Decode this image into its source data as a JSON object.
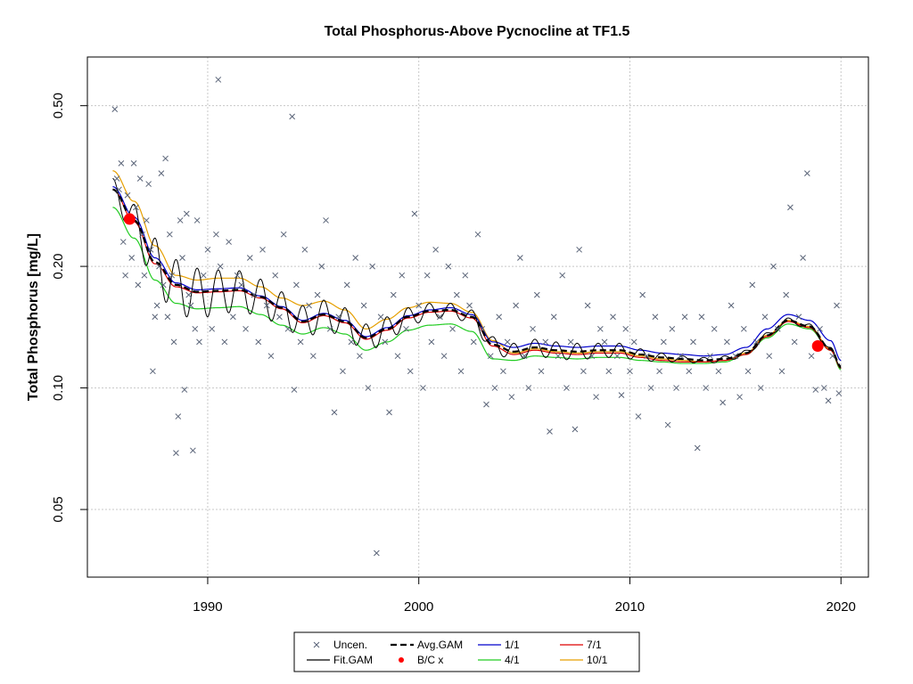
{
  "chart_data": {
    "type": "scatter",
    "title": "Total Phosphorus-Above Pycnocline at TF1.5",
    "xlabel": "",
    "ylabel": "Total Phosphorus [mg/L]",
    "xlim": [
      1984.3,
      2021.3
    ],
    "ylim": [
      0.034,
      0.66
    ],
    "y_scale": "log",
    "x_ticks": [
      1990,
      2000,
      2010,
      2020
    ],
    "x_tick_labels": [
      "1990",
      "2000",
      "2010",
      "2020"
    ],
    "y_ticks": [
      0.05,
      0.1,
      0.2,
      0.5
    ],
    "y_tick_labels": [
      "0.05",
      "0.10",
      "0.20",
      "0.50"
    ],
    "grid": true,
    "legend_position": "bottom-center",
    "legend": [
      {
        "label": "Uncen.",
        "symbol": "x",
        "color": "#5a6478"
      },
      {
        "label": "Fit.GAM",
        "symbol": "line",
        "color": "#000000"
      },
      {
        "label": "Avg.GAM",
        "symbol": "dash",
        "color": "#000000"
      },
      {
        "label": "B/C x",
        "symbol": "dot",
        "color": "#ff0000"
      },
      {
        "label": "1/1",
        "symbol": "line",
        "color": "#0000cc"
      },
      {
        "label": "4/1",
        "symbol": "line",
        "color": "#22cc22"
      },
      {
        "label": "7/1",
        "symbol": "line",
        "color": "#dd0000"
      },
      {
        "label": "10/1",
        "symbol": "line",
        "color": "#e69f00"
      }
    ],
    "observations": [
      [
        1985.6,
        0.49
      ],
      [
        1985.7,
        0.33
      ],
      [
        1985.8,
        0.31
      ],
      [
        1985.9,
        0.36
      ],
      [
        1986.0,
        0.23
      ],
      [
        1986.1,
        0.19
      ],
      [
        1986.2,
        0.3
      ],
      [
        1986.3,
        0.26
      ],
      [
        1986.4,
        0.21
      ],
      [
        1986.5,
        0.36
      ],
      [
        1986.6,
        0.28
      ],
      [
        1986.7,
        0.18
      ],
      [
        1986.8,
        0.33
      ],
      [
        1986.9,
        0.24
      ],
      [
        1987.0,
        0.19
      ],
      [
        1987.1,
        0.26
      ],
      [
        1987.2,
        0.32
      ],
      [
        1987.3,
        0.22
      ],
      [
        1987.4,
        0.11
      ],
      [
        1987.5,
        0.15
      ],
      [
        1987.6,
        0.16
      ],
      [
        1987.7,
        0.2
      ],
      [
        1987.8,
        0.34
      ],
      [
        1987.9,
        0.18
      ],
      [
        1988.0,
        0.37
      ],
      [
        1988.1,
        0.15
      ],
      [
        1988.2,
        0.24
      ],
      [
        1988.3,
        0.19
      ],
      [
        1988.4,
        0.13
      ],
      [
        1988.5,
        0.069
      ],
      [
        1988.6,
        0.085
      ],
      [
        1988.7,
        0.26
      ],
      [
        1988.8,
        0.21
      ],
      [
        1988.9,
        0.099
      ],
      [
        1989.0,
        0.27
      ],
      [
        1989.1,
        0.17
      ],
      [
        1989.2,
        0.16
      ],
      [
        1989.3,
        0.07
      ],
      [
        1989.4,
        0.14
      ],
      [
        1989.5,
        0.26
      ],
      [
        1989.6,
        0.13
      ],
      [
        1989.8,
        0.19
      ],
      [
        1990.0,
        0.22
      ],
      [
        1990.2,
        0.14
      ],
      [
        1990.4,
        0.24
      ],
      [
        1990.5,
        0.58
      ],
      [
        1990.6,
        0.2
      ],
      [
        1990.8,
        0.13
      ],
      [
        1991.0,
        0.23
      ],
      [
        1991.2,
        0.15
      ],
      [
        1991.4,
        0.19
      ],
      [
        1991.6,
        0.18
      ],
      [
        1991.8,
        0.14
      ],
      [
        1992.0,
        0.21
      ],
      [
        1992.2,
        0.17
      ],
      [
        1992.4,
        0.13
      ],
      [
        1992.6,
        0.22
      ],
      [
        1992.8,
        0.16
      ],
      [
        1993.0,
        0.12
      ],
      [
        1993.2,
        0.19
      ],
      [
        1993.4,
        0.15
      ],
      [
        1993.6,
        0.24
      ],
      [
        1993.8,
        0.14
      ],
      [
        1994.0,
        0.47
      ],
      [
        1994.1,
        0.099
      ],
      [
        1994.2,
        0.18
      ],
      [
        1994.4,
        0.13
      ],
      [
        1994.6,
        0.22
      ],
      [
        1994.8,
        0.16
      ],
      [
        1995.0,
        0.12
      ],
      [
        1995.2,
        0.17
      ],
      [
        1995.4,
        0.2
      ],
      [
        1995.6,
        0.26
      ],
      [
        1995.8,
        0.14
      ],
      [
        1996.0,
        0.087
      ],
      [
        1996.2,
        0.15
      ],
      [
        1996.4,
        0.11
      ],
      [
        1996.6,
        0.18
      ],
      [
        1996.8,
        0.13
      ],
      [
        1997.0,
        0.21
      ],
      [
        1997.2,
        0.12
      ],
      [
        1997.4,
        0.16
      ],
      [
        1997.6,
        0.1
      ],
      [
        1997.8,
        0.2
      ],
      [
        1998.0,
        0.039
      ],
      [
        1998.2,
        0.15
      ],
      [
        1998.4,
        0.13
      ],
      [
        1998.6,
        0.087
      ],
      [
        1998.8,
        0.17
      ],
      [
        1999.0,
        0.12
      ],
      [
        1999.2,
        0.19
      ],
      [
        1999.4,
        0.14
      ],
      [
        1999.6,
        0.11
      ],
      [
        1999.8,
        0.27
      ],
      [
        2000.0,
        0.16
      ],
      [
        2000.2,
        0.1
      ],
      [
        2000.4,
        0.19
      ],
      [
        2000.6,
        0.13
      ],
      [
        2000.8,
        0.22
      ],
      [
        2001.0,
        0.15
      ],
      [
        2001.2,
        0.12
      ],
      [
        2001.4,
        0.2
      ],
      [
        2001.6,
        0.14
      ],
      [
        2001.8,
        0.17
      ],
      [
        2002.0,
        0.11
      ],
      [
        2002.2,
        0.19
      ],
      [
        2002.4,
        0.16
      ],
      [
        2002.6,
        0.13
      ],
      [
        2002.8,
        0.24
      ],
      [
        2003.0,
        0.14
      ],
      [
        2003.2,
        0.091
      ],
      [
        2003.4,
        0.12
      ],
      [
        2003.6,
        0.1
      ],
      [
        2003.8,
        0.15
      ],
      [
        2004.0,
        0.11
      ],
      [
        2004.2,
        0.13
      ],
      [
        2004.4,
        0.095
      ],
      [
        2004.6,
        0.16
      ],
      [
        2004.8,
        0.21
      ],
      [
        2005.0,
        0.12
      ],
      [
        2005.2,
        0.1
      ],
      [
        2005.4,
        0.14
      ],
      [
        2005.6,
        0.17
      ],
      [
        2005.8,
        0.11
      ],
      [
        2006.0,
        0.13
      ],
      [
        2006.2,
        0.078
      ],
      [
        2006.4,
        0.15
      ],
      [
        2006.6,
        0.12
      ],
      [
        2006.8,
        0.19
      ],
      [
        2007.0,
        0.1
      ],
      [
        2007.2,
        0.13
      ],
      [
        2007.4,
        0.079
      ],
      [
        2007.6,
        0.22
      ],
      [
        2007.8,
        0.11
      ],
      [
        2008.0,
        0.16
      ],
      [
        2008.2,
        0.12
      ],
      [
        2008.4,
        0.095
      ],
      [
        2008.6,
        0.14
      ],
      [
        2008.8,
        0.13
      ],
      [
        2009.0,
        0.11
      ],
      [
        2009.2,
        0.15
      ],
      [
        2009.4,
        0.12
      ],
      [
        2009.6,
        0.096
      ],
      [
        2009.8,
        0.14
      ],
      [
        2010.0,
        0.11
      ],
      [
        2010.2,
        0.13
      ],
      [
        2010.4,
        0.085
      ],
      [
        2010.6,
        0.17
      ],
      [
        2010.8,
        0.12
      ],
      [
        2011.0,
        0.1
      ],
      [
        2011.2,
        0.15
      ],
      [
        2011.4,
        0.11
      ],
      [
        2011.6,
        0.13
      ],
      [
        2011.8,
        0.081
      ],
      [
        2012.0,
        0.14
      ],
      [
        2012.2,
        0.1
      ],
      [
        2012.4,
        0.12
      ],
      [
        2012.6,
        0.15
      ],
      [
        2012.8,
        0.11
      ],
      [
        2013.0,
        0.13
      ],
      [
        2013.2,
        0.071
      ],
      [
        2013.4,
        0.15
      ],
      [
        2013.6,
        0.1
      ],
      [
        2013.8,
        0.12
      ],
      [
        2014.0,
        0.14
      ],
      [
        2014.2,
        0.11
      ],
      [
        2014.4,
        0.092
      ],
      [
        2014.6,
        0.13
      ],
      [
        2014.8,
        0.16
      ],
      [
        2015.0,
        0.12
      ],
      [
        2015.2,
        0.095
      ],
      [
        2015.4,
        0.14
      ],
      [
        2015.6,
        0.11
      ],
      [
        2015.8,
        0.18
      ],
      [
        2016.0,
        0.13
      ],
      [
        2016.2,
        0.1
      ],
      [
        2016.4,
        0.15
      ],
      [
        2016.6,
        0.12
      ],
      [
        2016.8,
        0.2
      ],
      [
        2017.0,
        0.14
      ],
      [
        2017.2,
        0.11
      ],
      [
        2017.4,
        0.17
      ],
      [
        2017.6,
        0.28
      ],
      [
        2017.8,
        0.13
      ],
      [
        2018.0,
        0.15
      ],
      [
        2018.2,
        0.21
      ],
      [
        2018.4,
        0.34
      ],
      [
        2018.6,
        0.12
      ],
      [
        2018.8,
        0.099
      ],
      [
        2019.0,
        0.14
      ],
      [
        2019.2,
        0.1
      ],
      [
        2019.4,
        0.093
      ],
      [
        2019.6,
        0.12
      ],
      [
        2019.8,
        0.16
      ],
      [
        2019.9,
        0.097
      ]
    ],
    "series": [
      {
        "name": "Fit.GAM",
        "color": "#000000",
        "x": [
          1985.5,
          1986.5,
          1987.5,
          1988.5,
          1989.5,
          1990.5,
          1991.5,
          1992.5,
          1993.5,
          1994.5,
          1995.5,
          1996.5,
          1997.5,
          1998.5,
          1999.5,
          2000.5,
          2001.5,
          2002.5,
          2003.5,
          2004.5,
          2005.5,
          2006.5,
          2007.5,
          2008.5,
          2009.5,
          2010.5,
          2011.5,
          2012.5,
          2013.5,
          2014.5,
          2015.5,
          2016.5,
          2017.5,
          2018.5,
          2019.5,
          2020.0
        ],
        "y": [
          0.31,
          0.26,
          0.205,
          0.18,
          0.173,
          0.174,
          0.175,
          0.168,
          0.158,
          0.146,
          0.152,
          0.146,
          0.133,
          0.14,
          0.15,
          0.155,
          0.156,
          0.15,
          0.128,
          0.123,
          0.126,
          0.124,
          0.123,
          0.124,
          0.124,
          0.121,
          0.119,
          0.118,
          0.117,
          0.118,
          0.122,
          0.135,
          0.147,
          0.142,
          0.125,
          0.113
        ],
        "amplitude": [
          0.02,
          0.025,
          0.03,
          0.028,
          0.025,
          0.022,
          0.02,
          0.018,
          0.015,
          0.014,
          0.013,
          0.012,
          0.011,
          0.01,
          0.008,
          0.007,
          0.006,
          0.006,
          0.006,
          0.006,
          0.006,
          0.006,
          0.006,
          0.005,
          0.005,
          0.004,
          0.003,
          0.002,
          0.002,
          0.002,
          0.002,
          0.002,
          0.002,
          0.002,
          0.001,
          0.001
        ]
      },
      {
        "name": "Avg.GAM",
        "color": "#000000",
        "x": [
          1985.5,
          1986.5,
          1987.5,
          1988.5,
          1989.5,
          1990.5,
          1991.5,
          1992.5,
          1993.5,
          1994.5,
          1995.5,
          1996.5,
          1997.5,
          1998.5,
          1999.5,
          2000.5,
          2001.5,
          2002.5,
          2003.5,
          2004.5,
          2005.5,
          2006.5,
          2007.5,
          2008.5,
          2009.5,
          2010.5,
          2011.5,
          2012.5,
          2013.5,
          2014.5,
          2015.5,
          2016.5,
          2017.5,
          2018.5,
          2019.5,
          2020.0
        ],
        "y": [
          0.31,
          0.26,
          0.205,
          0.18,
          0.173,
          0.174,
          0.175,
          0.168,
          0.158,
          0.146,
          0.152,
          0.146,
          0.133,
          0.14,
          0.15,
          0.155,
          0.156,
          0.15,
          0.128,
          0.123,
          0.126,
          0.124,
          0.123,
          0.124,
          0.124,
          0.121,
          0.119,
          0.118,
          0.117,
          0.118,
          0.122,
          0.135,
          0.147,
          0.142,
          0.125,
          0.113
        ]
      },
      {
        "name": "1/1",
        "color": "#0000cc",
        "x": [
          1985.5,
          1986.5,
          1987.5,
          1988.5,
          1989.5,
          1990.5,
          1991.5,
          1992.5,
          1993.5,
          1994.5,
          1995.5,
          1996.5,
          1997.5,
          1998.5,
          1999.5,
          2000.5,
          2001.5,
          2002.5,
          2003.5,
          2004.5,
          2005.5,
          2006.5,
          2007.5,
          2008.5,
          2009.5,
          2010.5,
          2011.5,
          2012.5,
          2013.5,
          2014.5,
          2015.5,
          2016.5,
          2017.5,
          2018.5,
          2019.5,
          2020.0
        ],
        "y": [
          0.315,
          0.265,
          0.21,
          0.182,
          0.175,
          0.176,
          0.177,
          0.169,
          0.159,
          0.147,
          0.153,
          0.147,
          0.134,
          0.141,
          0.151,
          0.156,
          0.158,
          0.152,
          0.13,
          0.126,
          0.129,
          0.127,
          0.126,
          0.127,
          0.127,
          0.124,
          0.122,
          0.121,
          0.12,
          0.121,
          0.126,
          0.14,
          0.152,
          0.147,
          0.131,
          0.117
        ]
      },
      {
        "name": "4/1",
        "color": "#22cc22",
        "x": [
          1985.5,
          1986.5,
          1987.5,
          1988.5,
          1989.5,
          1990.5,
          1991.5,
          1992.5,
          1993.5,
          1994.5,
          1995.5,
          1996.5,
          1997.5,
          1998.5,
          1999.5,
          2000.5,
          2001.5,
          2002.5,
          2003.5,
          2004.5,
          2005.5,
          2006.5,
          2007.5,
          2008.5,
          2009.5,
          2010.5,
          2011.5,
          2012.5,
          2013.5,
          2014.5,
          2015.5,
          2016.5,
          2017.5,
          2018.5,
          2019.5,
          2020.0
        ],
        "y": [
          0.28,
          0.235,
          0.185,
          0.162,
          0.157,
          0.158,
          0.159,
          0.152,
          0.143,
          0.136,
          0.141,
          0.136,
          0.124,
          0.13,
          0.139,
          0.143,
          0.144,
          0.138,
          0.118,
          0.117,
          0.12,
          0.119,
          0.118,
          0.119,
          0.119,
          0.117,
          0.116,
          0.115,
          0.115,
          0.116,
          0.121,
          0.133,
          0.144,
          0.14,
          0.124,
          0.111
        ]
      },
      {
        "name": "7/1",
        "color": "#dd0000",
        "x": [
          1985.5,
          1986.5,
          1987.5,
          1988.5,
          1989.5,
          1990.5,
          1991.5,
          1992.5,
          1993.5,
          1994.5,
          1995.5,
          1996.5,
          1997.5,
          1998.5,
          1999.5,
          2000.5,
          2001.5,
          2002.5,
          2003.5,
          2004.5,
          2005.5,
          2006.5,
          2007.5,
          2008.5,
          2009.5,
          2010.5,
          2011.5,
          2012.5,
          2013.5,
          2014.5,
          2015.5,
          2016.5,
          2017.5,
          2018.5,
          2019.5,
          2020.0
        ],
        "y": [
          0.31,
          0.258,
          0.203,
          0.178,
          0.172,
          0.173,
          0.174,
          0.167,
          0.157,
          0.145,
          0.151,
          0.145,
          0.132,
          0.139,
          0.149,
          0.154,
          0.155,
          0.149,
          0.127,
          0.121,
          0.124,
          0.122,
          0.121,
          0.122,
          0.122,
          0.119,
          0.117,
          0.116,
          0.116,
          0.117,
          0.121,
          0.134,
          0.146,
          0.141,
          0.124,
          0.112
        ]
      },
      {
        "name": "10/1",
        "color": "#e69f00",
        "x": [
          1985.5,
          1986.5,
          1987.5,
          1988.5,
          1989.5,
          1990.5,
          1991.5,
          1992.5,
          1993.5,
          1994.5,
          1995.5,
          1996.5,
          1997.5,
          1998.5,
          1999.5,
          2000.5,
          2001.5,
          2002.5,
          2003.5,
          2004.5,
          2005.5,
          2006.5,
          2007.5,
          2008.5,
          2009.5,
          2010.5,
          2011.5,
          2012.5,
          2013.5,
          2014.5,
          2015.5,
          2016.5,
          2017.5,
          2018.5,
          2019.5,
          2020.0
        ],
        "y": [
          0.345,
          0.29,
          0.225,
          0.19,
          0.185,
          0.187,
          0.187,
          0.178,
          0.167,
          0.16,
          0.164,
          0.156,
          0.14,
          0.148,
          0.158,
          0.163,
          0.162,
          0.154,
          0.131,
          0.122,
          0.125,
          0.123,
          0.122,
          0.123,
          0.123,
          0.12,
          0.118,
          0.117,
          0.116,
          0.117,
          0.122,
          0.135,
          0.147,
          0.142,
          0.125,
          0.112
        ]
      }
    ],
    "bc_points": [
      [
        1986.3,
        0.262
      ],
      [
        2018.9,
        0.127
      ]
    ]
  }
}
